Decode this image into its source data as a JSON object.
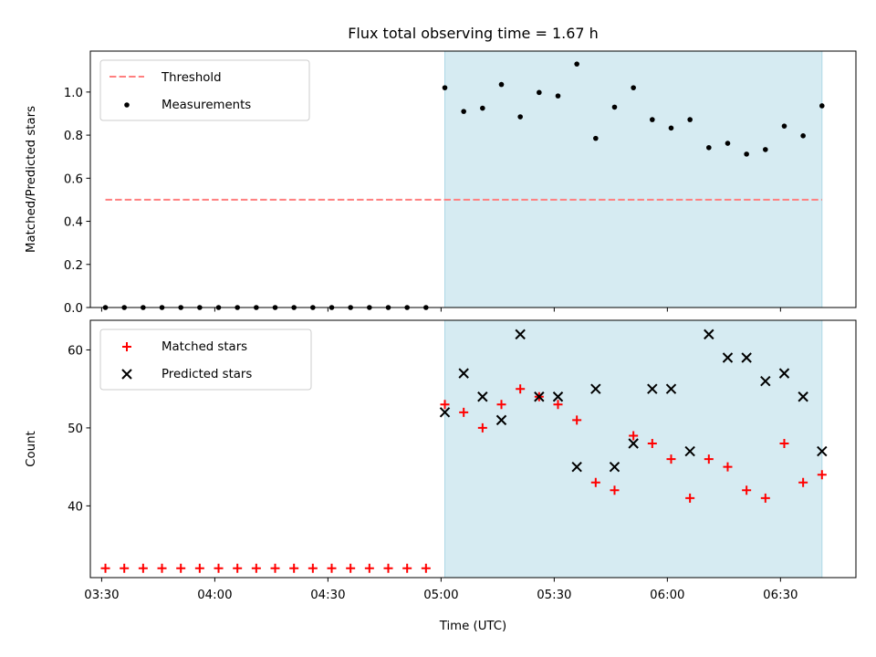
{
  "chart_data": {
    "type": "scatter",
    "title": "Flux total observing time = 1.67 h",
    "xlabel": "Time (UTC)",
    "x_tick_labels": [
      "03:30",
      "04:00",
      "04:30",
      "05:00",
      "05:30",
      "06:00",
      "06:30"
    ],
    "x_times": [
      "03:31",
      "03:36",
      "03:41",
      "03:46",
      "03:51",
      "03:56",
      "04:01",
      "04:06",
      "04:11",
      "04:16",
      "04:21",
      "04:26",
      "04:31",
      "04:36",
      "04:41",
      "04:46",
      "04:51",
      "04:56",
      "05:01",
      "05:06",
      "05:11",
      "05:16",
      "05:21",
      "05:26",
      "05:31",
      "05:36",
      "05:41",
      "05:46",
      "05:51",
      "05:56",
      "06:01",
      "06:06",
      "06:11",
      "06:16",
      "06:21",
      "06:26",
      "06:31",
      "06:36",
      "06:41"
    ],
    "shaded_interval": [
      "05:01",
      "06:41"
    ],
    "shade_color": "#add8e6",
    "panels": [
      {
        "ylabel": "Matched/Predicted stars",
        "ylim": [
          0,
          1.19
        ],
        "y_ticks": [
          "0.0",
          "0.2",
          "0.4",
          "0.6",
          "0.8",
          "1.0"
        ],
        "legend_placement": "upper-left",
        "series": [
          {
            "name": "Threshold",
            "kind": "dashed-line",
            "color": "#ff7f7f",
            "x_range": [
              "03:31",
              "06:41"
            ],
            "value": 0.5
          },
          {
            "name": "Measurements",
            "kind": "dot",
            "color": "#000000",
            "values": [
              0,
              0,
              0,
              0,
              0,
              0,
              0,
              0,
              0,
              0,
              0,
              0,
              0,
              0,
              0,
              0,
              0,
              0,
              1.02,
              0.91,
              0.925,
              1.035,
              0.885,
              0.998,
              0.982,
              1.13,
              0.785,
              0.93,
              1.02,
              0.872,
              0.833,
              0.872,
              0.742,
              0.762,
              0.712,
              0.733,
              0.842,
              0.797,
              0.936
            ]
          }
        ]
      },
      {
        "ylabel": "Count",
        "ylim": [
          30.8,
          63.8
        ],
        "y_ticks": [
          "40",
          "50",
          "60"
        ],
        "legend_placement": "upper-left",
        "series": [
          {
            "name": "Matched stars",
            "kind": "plus",
            "color": "#ff0000",
            "values": [
              32,
              32,
              32,
              32,
              32,
              32,
              32,
              32,
              32,
              32,
              32,
              32,
              32,
              32,
              32,
              32,
              32,
              32,
              53,
              52,
              50,
              53,
              55,
              54,
              53,
              51,
              43,
              42,
              49,
              48,
              46,
              41,
              46,
              45,
              42,
              41,
              48,
              43,
              44
            ]
          },
          {
            "name": "Predicted stars",
            "kind": "cross",
            "color": "#000000",
            "values": [
              null,
              null,
              null,
              null,
              null,
              null,
              null,
              null,
              null,
              null,
              null,
              null,
              null,
              null,
              null,
              null,
              null,
              null,
              52,
              57,
              54,
              51,
              62,
              54,
              54,
              45,
              55,
              45,
              48,
              55,
              55,
              47,
              62,
              59,
              59,
              56,
              57,
              54,
              47
            ]
          }
        ]
      }
    ]
  }
}
